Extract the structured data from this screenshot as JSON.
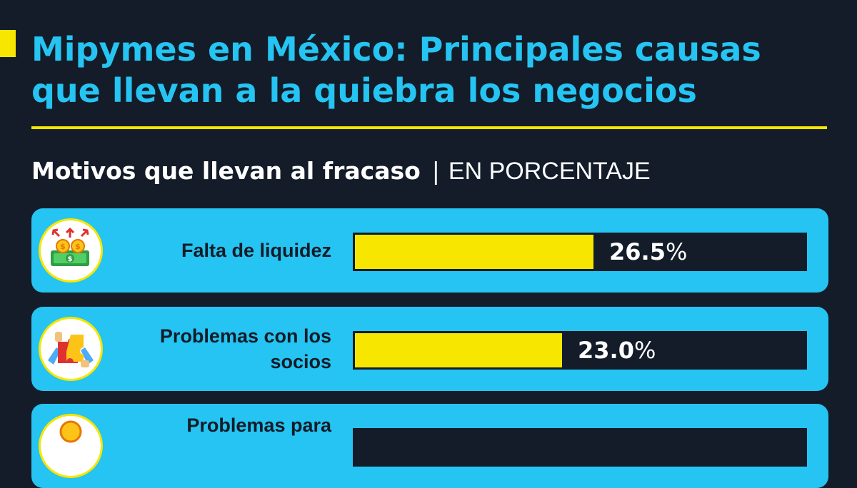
{
  "title": "Mipymes en México: Principales causas que llevan a la quiebra los negocios",
  "subtitle": {
    "main": "Motivos que llevan al fracaso",
    "separator": "|",
    "unit": "EN PORCENTAJE"
  },
  "colors": {
    "background": "#131c28",
    "accent_yellow": "#f7e600",
    "card_blue": "#25c4f2",
    "bar_track": "#131c28"
  },
  "chart_data": {
    "type": "bar",
    "orientation": "horizontal",
    "title": "Mipymes en México: Principales causas que llevan a la quiebra los negocios",
    "subtitle": "Motivos que llevan al fracaso | EN PORCENTAJE",
    "categories": [
      "Falta de liquidez",
      "Problemas con los socios",
      "Problemas para"
    ],
    "value_labels": [
      "26.5",
      "23.0",
      ""
    ],
    "series": [
      {
        "values": [
          26.5,
          23.0,
          null
        ]
      }
    ],
    "xlim": [
      0,
      50
    ],
    "icons": [
      "money-growth-icon",
      "puzzle-handshake-icon",
      "coin-icon"
    ],
    "grid": false,
    "legend": "none"
  }
}
